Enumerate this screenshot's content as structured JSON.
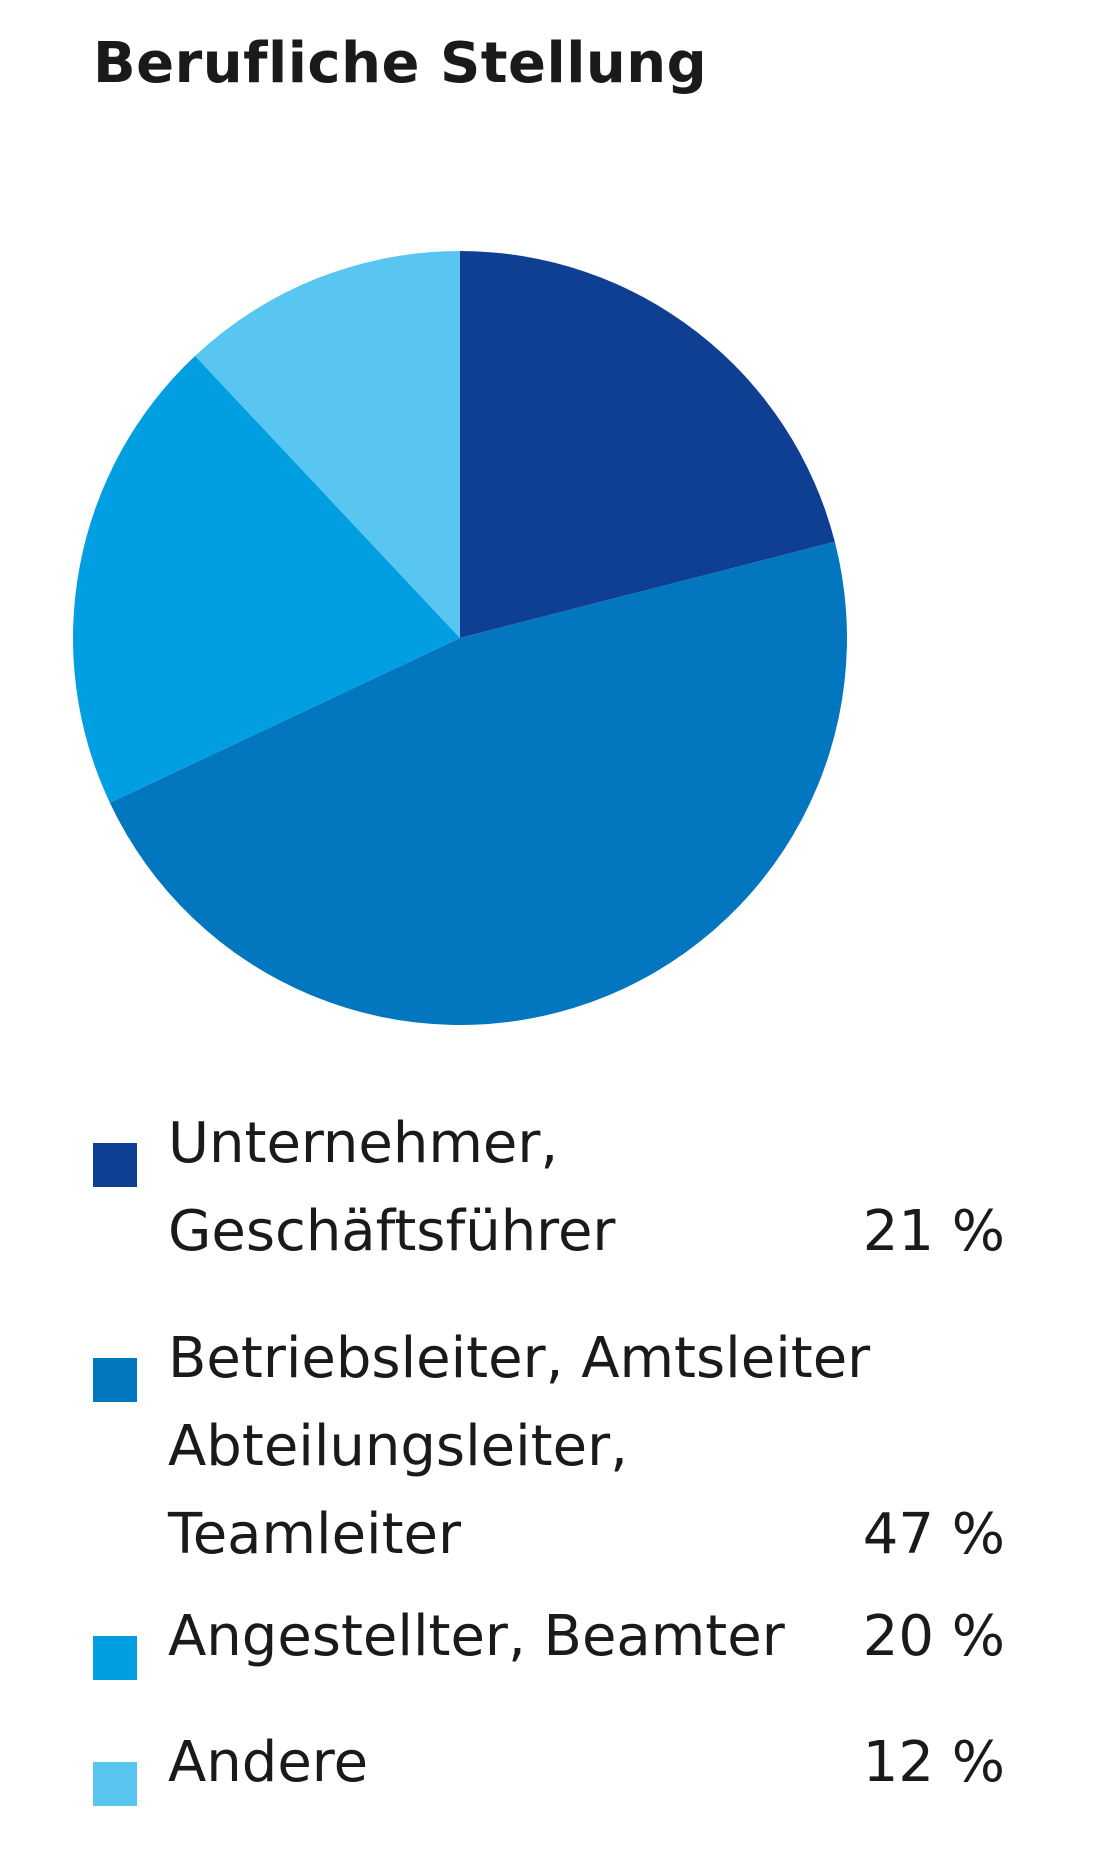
{
  "chart_data": {
    "type": "pie",
    "title": "Berufliche Stellung",
    "unit": "%",
    "slices": [
      {
        "label": "Unternehmer,\nGeschäftsführer",
        "value": 21,
        "value_label": "21 %",
        "color": "#0f3f93"
      },
      {
        "label": "Betriebsleiter, Amtsleiter\nAbteilungsleiter,\nTeamleiter",
        "value": 47,
        "value_label": "47 %",
        "color": "#0277c0"
      },
      {
        "label": "Angestellter, Beamter",
        "value": 20,
        "value_label": "20 %",
        "color": "#019fe2"
      },
      {
        "label": "Andere",
        "value": 12,
        "value_label": "12 %",
        "color": "#59c6f2"
      }
    ],
    "start_angle": "top",
    "direction": "clockwise",
    "legend_position": "bottom"
  }
}
